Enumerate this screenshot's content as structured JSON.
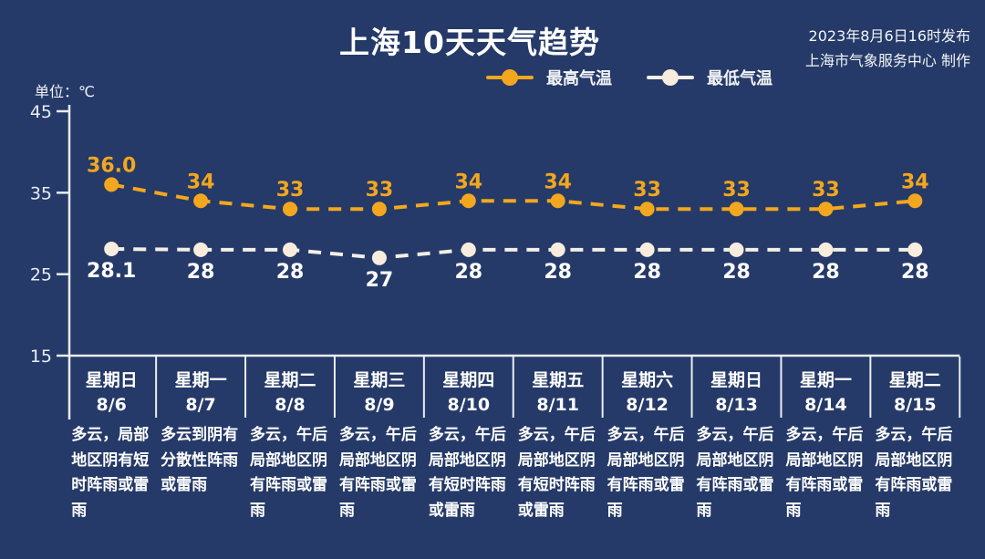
{
  "header": {
    "title": "上海10天天气趋势",
    "publish_time": "2023年8月6日16时发布",
    "publisher": "上海市气象服务中心 制作",
    "unit_label": "单位：℃"
  },
  "legend": {
    "max_label": "最高气温",
    "min_label": "最低气温"
  },
  "colors": {
    "background": "#253a68",
    "max_color": "#f2a71e",
    "min_dot_color": "#f7ecdd",
    "min_line_color": "#f2efe6",
    "axis_color": "#e9edf5",
    "text_color": "#ffffff"
  },
  "chart_data": {
    "type": "line",
    "title": "上海10天天气趋势",
    "categories": [
      "8/6",
      "8/7",
      "8/8",
      "8/9",
      "8/10",
      "8/11",
      "8/12",
      "8/13",
      "8/14",
      "8/15"
    ],
    "weekdays": [
      "星期日",
      "星期一",
      "星期二",
      "星期三",
      "星期四",
      "星期五",
      "星期六",
      "星期日",
      "星期一",
      "星期二"
    ],
    "series": [
      {
        "name": "最高气温",
        "values": [
          36.0,
          34,
          33,
          33,
          34,
          34,
          33,
          33,
          33,
          34
        ],
        "labels": [
          "36.0",
          "34",
          "33",
          "33",
          "34",
          "34",
          "33",
          "33",
          "33",
          "34"
        ],
        "color": "#f2a71e",
        "label_color": "#f2a71e",
        "label_side": "above"
      },
      {
        "name": "最低气温",
        "values": [
          28.1,
          28,
          28,
          27,
          28,
          28,
          28,
          28,
          28,
          28
        ],
        "labels": [
          "28.1",
          "28",
          "28",
          "27",
          "28",
          "28",
          "28",
          "28",
          "28",
          "28"
        ],
        "color": "#f2efe6",
        "dot_color": "#f7ecdd",
        "label_color": "#ffffff",
        "label_side": "below"
      }
    ],
    "ylabel": "单位：℃",
    "ylim": [
      15,
      45
    ],
    "yticks": [
      45,
      35,
      25,
      15
    ],
    "grid": false,
    "line_style": "dashed",
    "legend_position": "top-center"
  },
  "days": [
    {
      "weekday": "星期日",
      "date": "8/6",
      "desc": "多云，局部地区阴有短时阵雨或雷雨"
    },
    {
      "weekday": "星期一",
      "date": "8/7",
      "desc": "多云到阴有分散性阵雨或雷雨"
    },
    {
      "weekday": "星期二",
      "date": "8/8",
      "desc": "多云，午后局部地区阴有阵雨或雷雨"
    },
    {
      "weekday": "星期三",
      "date": "8/9",
      "desc": "多云，午后局部地区阴有阵雨或雷雨"
    },
    {
      "weekday": "星期四",
      "date": "8/10",
      "desc": "多云，午后局部地区阴有短时阵雨或雷雨"
    },
    {
      "weekday": "星期五",
      "date": "8/11",
      "desc": "多云，午后局部地区阴有短时阵雨或雷雨"
    },
    {
      "weekday": "星期六",
      "date": "8/12",
      "desc": "多云，午后局部地区阴有阵雨或雷雨"
    },
    {
      "weekday": "星期日",
      "date": "8/13",
      "desc": "多云，午后局部地区阴有阵雨或雷雨"
    },
    {
      "weekday": "星期一",
      "date": "8/14",
      "desc": "多云，午后局部地区阴有阵雨或雷雨"
    },
    {
      "weekday": "星期二",
      "date": "8/15",
      "desc": "多云，午后局部地区阴有阵雨或雷雨"
    }
  ]
}
